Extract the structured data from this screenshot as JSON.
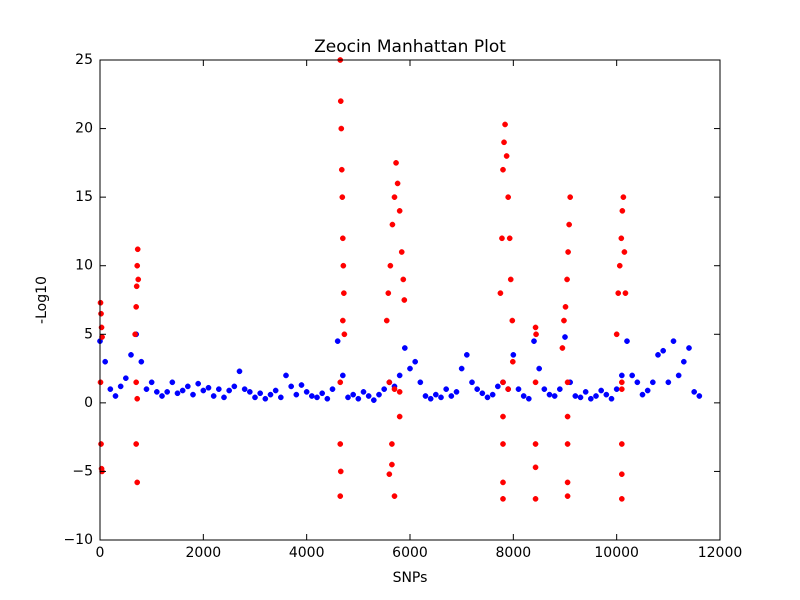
{
  "chart_data": {
    "type": "scatter",
    "title": "Zeocin Manhattan Plot",
    "x_label": "SNPs",
    "y_label": "-Log10",
    "xlim": [
      0,
      12000
    ],
    "ylim": [
      -10,
      25
    ],
    "xticks": [
      0,
      2000,
      4000,
      6000,
      8000,
      10000,
      12000
    ],
    "yticks": [
      {
        "value": -10,
        "label": "−10"
      },
      {
        "value": -5,
        "label": "−5"
      },
      0,
      5,
      10,
      15,
      20,
      25
    ],
    "series": [
      {
        "color": "#0000ff",
        "x": [
          0,
          100,
          200,
          300,
          400,
          500,
          600,
          700,
          800,
          900,
          1000,
          1100,
          1200,
          1300,
          1400,
          1500,
          1600,
          1700,
          1800,
          1900,
          2000,
          2100,
          2200,
          2300,
          2400,
          2500,
          2600,
          2700,
          2800,
          2900,
          3000,
          3100,
          3200,
          3300,
          3400,
          3500,
          3600,
          3700,
          3800,
          3900,
          4000,
          4100,
          4200,
          4300,
          4400,
          4500,
          4600,
          4700,
          4800,
          4900,
          5000,
          5100,
          5200,
          5300,
          5400,
          5500,
          5600,
          5700,
          5800,
          5900,
          6000,
          6100,
          6200,
          6300,
          6400,
          6500,
          6600,
          6700,
          6800,
          6900,
          7000,
          7100,
          7200,
          7300,
          7400,
          7500,
          7600,
          7700,
          7800,
          7900,
          8000,
          8100,
          8200,
          8300,
          8400,
          8500,
          8600,
          8700,
          8800,
          8900,
          9000,
          9100,
          9200,
          9300,
          9400,
          9500,
          9600,
          9700,
          9800,
          9900,
          10000,
          10100,
          10200,
          10300,
          10400,
          10500,
          10600,
          10700,
          10800,
          10900,
          11000,
          11100,
          11200,
          11300,
          11400,
          11500,
          11600
        ],
        "values": [
          4.5,
          3.0,
          1.0,
          0.5,
          1.2,
          1.8,
          3.5,
          5.0,
          3.0,
          1.0,
          1.5,
          0.8,
          0.5,
          0.8,
          1.5,
          0.7,
          0.9,
          1.2,
          0.6,
          1.4,
          0.9,
          1.1,
          0.5,
          1.0,
          0.4,
          0.9,
          1.2,
          2.3,
          1.0,
          0.8,
          0.4,
          0.7,
          0.3,
          0.6,
          0.9,
          0.4,
          2.0,
          1.2,
          0.6,
          1.3,
          0.8,
          0.5,
          0.4,
          0.7,
          0.3,
          1.0,
          4.5,
          2.0,
          0.4,
          0.6,
          0.3,
          0.8,
          0.5,
          0.2,
          0.6,
          1.0,
          1.5,
          1.2,
          2.0,
          4.0,
          2.5,
          3.0,
          1.5,
          0.5,
          0.3,
          0.6,
          0.4,
          1.0,
          0.5,
          0.8,
          2.5,
          3.5,
          1.5,
          1.0,
          0.7,
          0.4,
          0.6,
          1.2,
          1.5,
          1.0,
          3.5,
          1.0,
          0.5,
          0.3,
          4.5,
          2.5,
          1.0,
          0.6,
          0.5,
          1.0,
          4.8,
          1.5,
          0.5,
          0.4,
          0.8,
          0.3,
          0.5,
          0.9,
          0.6,
          0.3,
          1.0,
          2.0,
          4.5,
          2.0,
          1.5,
          0.6,
          0.9,
          1.5,
          3.5,
          3.8,
          1.5,
          4.5,
          2.0,
          3.0,
          4.0,
          0.8,
          0.5
        ]
      },
      {
        "color": "#ff0000",
        "x": [
          10,
          20,
          30,
          40,
          10,
          20,
          30,
          40,
          680,
          700,
          710,
          720,
          730,
          740,
          700,
          720,
          700,
          720,
          4650,
          4660,
          4670,
          4680,
          4690,
          4700,
          4710,
          4720,
          4700,
          4730,
          4650,
          4650,
          4660,
          4650,
          5550,
          5580,
          5620,
          5660,
          5700,
          5730,
          5760,
          5800,
          5840,
          5870,
          5890,
          5600,
          5700,
          5800,
          5650,
          5650,
          5600,
          5700,
          5800,
          7750,
          7780,
          7800,
          7820,
          7840,
          7870,
          7900,
          7930,
          7950,
          7980,
          7990,
          7800,
          7900,
          7800,
          7800,
          7800,
          7800,
          8430,
          8440,
          8430,
          8430,
          8430,
          8430,
          8950,
          8980,
          9010,
          9040,
          9060,
          9080,
          9100,
          9050,
          9050,
          9050,
          9050,
          9050,
          10000,
          10030,
          10060,
          10090,
          10110,
          10130,
          10150,
          10170,
          10100,
          10100,
          10100,
          10100,
          10100
        ],
        "values": [
          7.3,
          6.5,
          5.5,
          4.8,
          1.5,
          -3.0,
          -4.8,
          -5.0,
          5.0,
          7.0,
          8.5,
          10.0,
          11.2,
          9.0,
          -3.0,
          -5.8,
          1.5,
          0.3,
          25.0,
          22.0,
          20.0,
          17.0,
          15.0,
          12.0,
          10.0,
          8.0,
          6.0,
          5.0,
          1.5,
          -3.0,
          -5.0,
          -6.8,
          6.0,
          8.0,
          10.0,
          13.0,
          15.0,
          17.5,
          16.0,
          14.0,
          11.0,
          9.0,
          7.5,
          1.5,
          1.0,
          -1.0,
          -3.0,
          -4.5,
          -5.2,
          -6.8,
          0.8,
          8.0,
          12.0,
          17.0,
          19.0,
          20.3,
          18.0,
          15.0,
          12.0,
          9.0,
          6.0,
          3.0,
          1.5,
          1.0,
          -1.0,
          -3.0,
          -5.8,
          -7.0,
          5.5,
          5.0,
          1.5,
          -3.0,
          -4.7,
          -7.0,
          4.0,
          6.0,
          7.0,
          9.0,
          11.0,
          13.0,
          15.0,
          1.5,
          -1.0,
          -3.0,
          -5.8,
          -6.8,
          5.0,
          8.0,
          10.0,
          12.0,
          14.0,
          15.0,
          11.0,
          8.0,
          1.5,
          1.0,
          -3.0,
          -5.2,
          -7.0
        ]
      }
    ]
  }
}
